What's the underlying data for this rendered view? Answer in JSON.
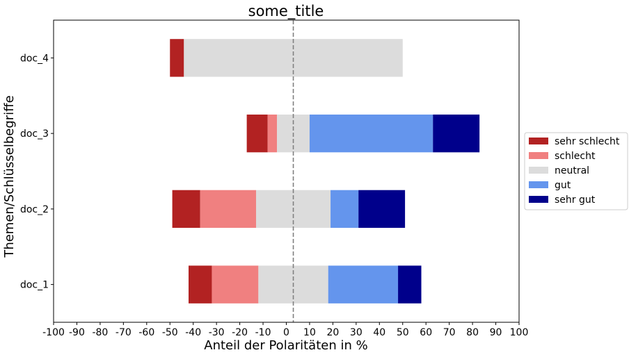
{
  "chart_data": {
    "type": "bar",
    "orientation": "horizontal",
    "stacked": true,
    "title": "some_title",
    "xlabel": "Anteil der Polaritäten in %",
    "ylabel": "Themen/Schlüsselbegriffe",
    "xlim": [
      -100,
      100
    ],
    "xticks": [
      "-100",
      "-90",
      "-80",
      "-70",
      "-60",
      "-50",
      "-40",
      "-30",
      "-20",
      "-10",
      "0",
      "10",
      "20",
      "30",
      "40",
      "50",
      "60",
      "70",
      "80",
      "90",
      "100"
    ],
    "grid": false,
    "legend_position": "right",
    "reference_line": {
      "x": 3,
      "style": "dashed",
      "color": "#808080"
    },
    "categories": [
      "doc_1",
      "doc_2",
      "doc_3",
      "doc_4"
    ],
    "series": [
      {
        "name": "sehr schlecht",
        "color": "#b22222",
        "segments": [
          [
            -42,
            -32
          ],
          [
            -49,
            -37
          ],
          [
            -17,
            -8
          ],
          [
            -50,
            -44
          ]
        ]
      },
      {
        "name": "schlecht",
        "color": "#f08080",
        "segments": [
          [
            -32,
            -12
          ],
          [
            -37,
            -13
          ],
          [
            -8,
            -4
          ],
          null
        ]
      },
      {
        "name": "neutral",
        "color": "#dcdcdc",
        "segments": [
          [
            -12,
            18
          ],
          [
            -13,
            19
          ],
          [
            -4,
            10
          ],
          [
            -44,
            50
          ]
        ]
      },
      {
        "name": "gut",
        "color": "#6495ed",
        "segments": [
          [
            18,
            48
          ],
          [
            19,
            31
          ],
          [
            10,
            63
          ],
          null
        ]
      },
      {
        "name": "sehr gut",
        "color": "#00008b",
        "segments": [
          [
            48,
            58
          ],
          [
            31,
            51
          ],
          [
            63,
            83
          ],
          null
        ]
      }
    ]
  }
}
